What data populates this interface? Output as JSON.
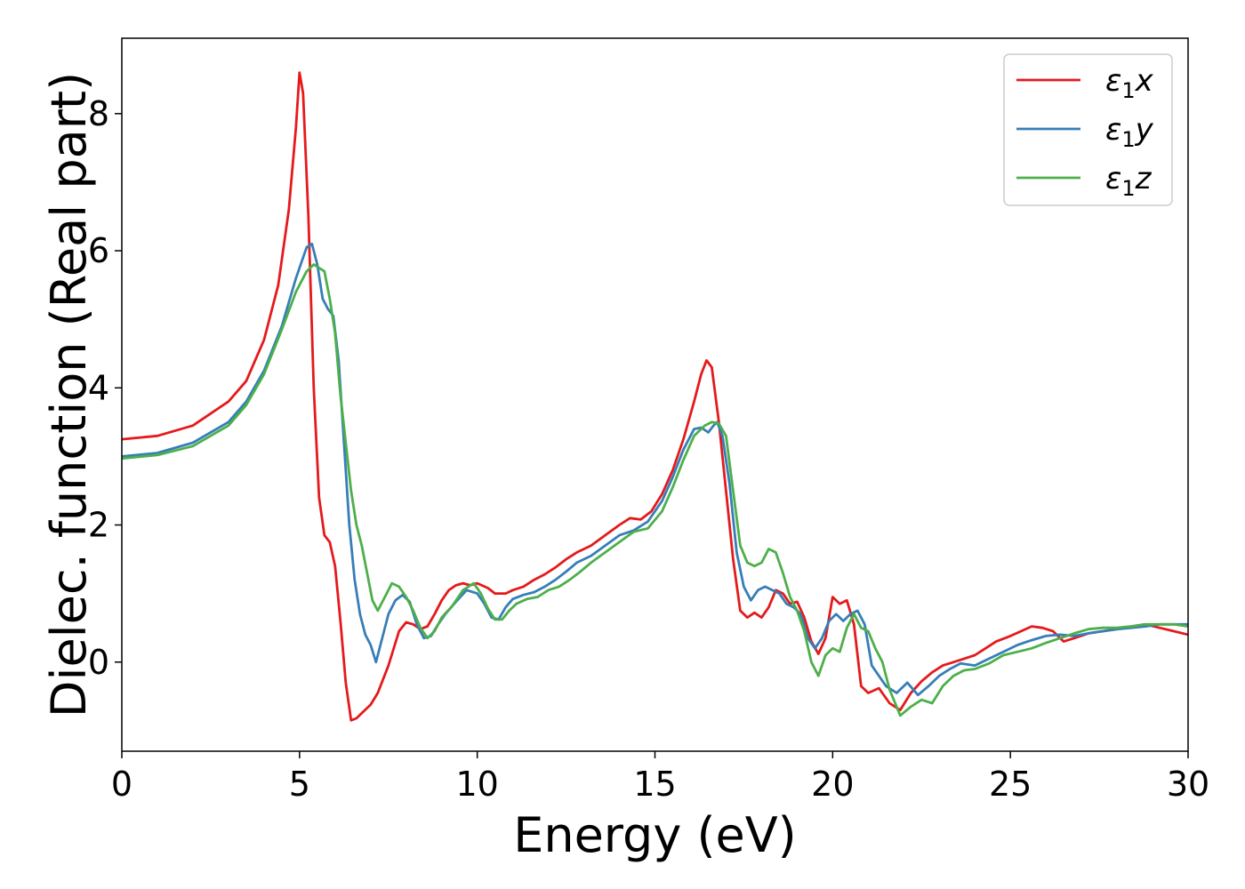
{
  "chart_data": {
    "type": "line",
    "title": "",
    "xlabel": "Energy (eV)",
    "ylabel": "Dielec. function (Real part)",
    "xlim": [
      0,
      30
    ],
    "ylim": [
      -1.3,
      9.1
    ],
    "xticks": [
      0,
      5,
      10,
      15,
      20,
      25,
      30
    ],
    "yticks": [
      0,
      2,
      4,
      6,
      8
    ],
    "grid": false,
    "legend_position": "top-right",
    "series": [
      {
        "name": "ε1x",
        "label_base": "ε",
        "label_sub": "1",
        "label_suffix": "x",
        "color": "#e41a1c",
        "points": [
          [
            0,
            3.25
          ],
          [
            1,
            3.3
          ],
          [
            2,
            3.45
          ],
          [
            3,
            3.8
          ],
          [
            3.5,
            4.1
          ],
          [
            4,
            4.7
          ],
          [
            4.4,
            5.5
          ],
          [
            4.7,
            6.6
          ],
          [
            4.9,
            7.8
          ],
          [
            5.0,
            8.6
          ],
          [
            5.1,
            8.3
          ],
          [
            5.25,
            6.5
          ],
          [
            5.4,
            4.0
          ],
          [
            5.55,
            2.4
          ],
          [
            5.7,
            1.85
          ],
          [
            5.85,
            1.75
          ],
          [
            6.0,
            1.4
          ],
          [
            6.15,
            0.6
          ],
          [
            6.3,
            -0.3
          ],
          [
            6.45,
            -0.85
          ],
          [
            6.6,
            -0.82
          ],
          [
            6.8,
            -0.72
          ],
          [
            7.0,
            -0.62
          ],
          [
            7.2,
            -0.45
          ],
          [
            7.5,
            -0.05
          ],
          [
            7.8,
            0.45
          ],
          [
            8.0,
            0.58
          ],
          [
            8.2,
            0.55
          ],
          [
            8.4,
            0.48
          ],
          [
            8.6,
            0.52
          ],
          [
            8.8,
            0.7
          ],
          [
            9.0,
            0.9
          ],
          [
            9.2,
            1.05
          ],
          [
            9.4,
            1.12
          ],
          [
            9.6,
            1.15
          ],
          [
            9.8,
            1.12
          ],
          [
            10.0,
            1.15
          ],
          [
            10.3,
            1.08
          ],
          [
            10.5,
            1.0
          ],
          [
            10.8,
            1.0
          ],
          [
            11.0,
            1.05
          ],
          [
            11.3,
            1.1
          ],
          [
            11.6,
            1.2
          ],
          [
            11.9,
            1.28
          ],
          [
            12.2,
            1.38
          ],
          [
            12.5,
            1.5
          ],
          [
            12.8,
            1.6
          ],
          [
            13.2,
            1.7
          ],
          [
            13.6,
            1.85
          ],
          [
            14.0,
            2.0
          ],
          [
            14.3,
            2.1
          ],
          [
            14.6,
            2.08
          ],
          [
            14.9,
            2.2
          ],
          [
            15.2,
            2.45
          ],
          [
            15.5,
            2.8
          ],
          [
            15.8,
            3.25
          ],
          [
            16.1,
            3.8
          ],
          [
            16.3,
            4.2
          ],
          [
            16.45,
            4.4
          ],
          [
            16.6,
            4.3
          ],
          [
            16.8,
            3.5
          ],
          [
            17.0,
            2.5
          ],
          [
            17.2,
            1.5
          ],
          [
            17.4,
            0.75
          ],
          [
            17.6,
            0.65
          ],
          [
            17.8,
            0.72
          ],
          [
            18.0,
            0.65
          ],
          [
            18.2,
            0.8
          ],
          [
            18.4,
            1.05
          ],
          [
            18.6,
            1.0
          ],
          [
            18.8,
            0.85
          ],
          [
            19.0,
            0.88
          ],
          [
            19.2,
            0.65
          ],
          [
            19.4,
            0.3
          ],
          [
            19.6,
            0.12
          ],
          [
            19.8,
            0.35
          ],
          [
            20.0,
            0.95
          ],
          [
            20.2,
            0.85
          ],
          [
            20.4,
            0.9
          ],
          [
            20.6,
            0.55
          ],
          [
            20.8,
            -0.35
          ],
          [
            21.0,
            -0.45
          ],
          [
            21.3,
            -0.38
          ],
          [
            21.6,
            -0.6
          ],
          [
            21.9,
            -0.7
          ],
          [
            22.2,
            -0.45
          ],
          [
            22.5,
            -0.28
          ],
          [
            22.8,
            -0.15
          ],
          [
            23.1,
            -0.05
          ],
          [
            23.4,
            0.0
          ],
          [
            23.7,
            0.05
          ],
          [
            24.0,
            0.1
          ],
          [
            24.3,
            0.2
          ],
          [
            24.6,
            0.3
          ],
          [
            25.0,
            0.38
          ],
          [
            25.3,
            0.45
          ],
          [
            25.6,
            0.52
          ],
          [
            25.9,
            0.5
          ],
          [
            26.2,
            0.45
          ],
          [
            26.5,
            0.3
          ],
          [
            26.8,
            0.35
          ],
          [
            27.2,
            0.42
          ],
          [
            27.6,
            0.45
          ],
          [
            28.0,
            0.48
          ],
          [
            28.4,
            0.52
          ],
          [
            28.8,
            0.55
          ],
          [
            29.2,
            0.5
          ],
          [
            29.6,
            0.45
          ],
          [
            30,
            0.4
          ]
        ]
      },
      {
        "name": "ε1y",
        "label_base": "ε",
        "label_sub": "1",
        "label_suffix": "y",
        "color": "#377eb8",
        "points": [
          [
            0,
            3.0
          ],
          [
            1,
            3.05
          ],
          [
            2,
            3.2
          ],
          [
            3,
            3.5
          ],
          [
            3.5,
            3.8
          ],
          [
            4,
            4.25
          ],
          [
            4.5,
            4.9
          ],
          [
            4.9,
            5.6
          ],
          [
            5.2,
            6.05
          ],
          [
            5.35,
            6.1
          ],
          [
            5.5,
            5.8
          ],
          [
            5.65,
            5.3
          ],
          [
            5.8,
            5.15
          ],
          [
            5.95,
            5.05
          ],
          [
            6.1,
            4.4
          ],
          [
            6.25,
            3.2
          ],
          [
            6.4,
            2.0
          ],
          [
            6.55,
            1.2
          ],
          [
            6.7,
            0.7
          ],
          [
            6.85,
            0.4
          ],
          [
            7.0,
            0.25
          ],
          [
            7.15,
            0.0
          ],
          [
            7.3,
            0.3
          ],
          [
            7.5,
            0.7
          ],
          [
            7.7,
            0.9
          ],
          [
            7.9,
            0.98
          ],
          [
            8.1,
            0.88
          ],
          [
            8.3,
            0.55
          ],
          [
            8.5,
            0.35
          ],
          [
            8.7,
            0.38
          ],
          [
            8.9,
            0.55
          ],
          [
            9.1,
            0.7
          ],
          [
            9.4,
            0.88
          ],
          [
            9.7,
            1.05
          ],
          [
            10.0,
            1.0
          ],
          [
            10.2,
            0.85
          ],
          [
            10.4,
            0.65
          ],
          [
            10.6,
            0.62
          ],
          [
            10.8,
            0.8
          ],
          [
            11.0,
            0.92
          ],
          [
            11.3,
            0.98
          ],
          [
            11.6,
            1.02
          ],
          [
            11.9,
            1.1
          ],
          [
            12.2,
            1.2
          ],
          [
            12.5,
            1.32
          ],
          [
            12.8,
            1.45
          ],
          [
            13.2,
            1.55
          ],
          [
            13.6,
            1.7
          ],
          [
            14.0,
            1.85
          ],
          [
            14.4,
            1.92
          ],
          [
            14.8,
            2.05
          ],
          [
            15.2,
            2.35
          ],
          [
            15.5,
            2.7
          ],
          [
            15.8,
            3.1
          ],
          [
            16.1,
            3.4
          ],
          [
            16.3,
            3.42
          ],
          [
            16.5,
            3.35
          ],
          [
            16.65,
            3.45
          ],
          [
            16.75,
            3.5
          ],
          [
            16.9,
            3.3
          ],
          [
            17.1,
            2.6
          ],
          [
            17.3,
            1.6
          ],
          [
            17.5,
            1.1
          ],
          [
            17.7,
            0.9
          ],
          [
            17.9,
            1.05
          ],
          [
            18.1,
            1.1
          ],
          [
            18.3,
            1.05
          ],
          [
            18.5,
            1.0
          ],
          [
            18.7,
            0.85
          ],
          [
            18.9,
            0.8
          ],
          [
            19.1,
            0.7
          ],
          [
            19.3,
            0.35
          ],
          [
            19.5,
            0.2
          ],
          [
            19.7,
            0.35
          ],
          [
            19.9,
            0.6
          ],
          [
            20.1,
            0.7
          ],
          [
            20.3,
            0.6
          ],
          [
            20.5,
            0.7
          ],
          [
            20.7,
            0.75
          ],
          [
            20.9,
            0.55
          ],
          [
            21.1,
            -0.05
          ],
          [
            21.3,
            -0.2
          ],
          [
            21.5,
            -0.35
          ],
          [
            21.8,
            -0.45
          ],
          [
            22.1,
            -0.3
          ],
          [
            22.4,
            -0.48
          ],
          [
            22.7,
            -0.35
          ],
          [
            23.0,
            -0.2
          ],
          [
            23.3,
            -0.1
          ],
          [
            23.6,
            -0.02
          ],
          [
            24.0,
            -0.05
          ],
          [
            24.4,
            0.05
          ],
          [
            24.8,
            0.15
          ],
          [
            25.2,
            0.25
          ],
          [
            25.6,
            0.32
          ],
          [
            26.0,
            0.38
          ],
          [
            26.4,
            0.4
          ],
          [
            26.8,
            0.38
          ],
          [
            27.2,
            0.42
          ],
          [
            27.6,
            0.45
          ],
          [
            28.0,
            0.48
          ],
          [
            28.4,
            0.5
          ],
          [
            28.8,
            0.52
          ],
          [
            29.2,
            0.55
          ],
          [
            29.6,
            0.55
          ],
          [
            30,
            0.55
          ]
        ]
      },
      {
        "name": "ε1z",
        "label_base": "ε",
        "label_sub": "1",
        "label_suffix": "z",
        "color": "#4daf4a",
        "points": [
          [
            0,
            2.97
          ],
          [
            1,
            3.02
          ],
          [
            2,
            3.15
          ],
          [
            3,
            3.45
          ],
          [
            3.5,
            3.75
          ],
          [
            4,
            4.2
          ],
          [
            4.5,
            4.85
          ],
          [
            4.9,
            5.4
          ],
          [
            5.2,
            5.7
          ],
          [
            5.4,
            5.8
          ],
          [
            5.55,
            5.75
          ],
          [
            5.7,
            5.7
          ],
          [
            5.85,
            5.3
          ],
          [
            6.0,
            4.8
          ],
          [
            6.15,
            3.9
          ],
          [
            6.3,
            3.2
          ],
          [
            6.45,
            2.5
          ],
          [
            6.6,
            2.0
          ],
          [
            6.75,
            1.7
          ],
          [
            6.9,
            1.3
          ],
          [
            7.05,
            0.9
          ],
          [
            7.2,
            0.75
          ],
          [
            7.4,
            0.95
          ],
          [
            7.6,
            1.15
          ],
          [
            7.8,
            1.1
          ],
          [
            8.0,
            0.95
          ],
          [
            8.2,
            0.75
          ],
          [
            8.4,
            0.5
          ],
          [
            8.6,
            0.35
          ],
          [
            8.8,
            0.45
          ],
          [
            9.0,
            0.65
          ],
          [
            9.3,
            0.82
          ],
          [
            9.6,
            1.05
          ],
          [
            9.9,
            1.15
          ],
          [
            10.1,
            1.0
          ],
          [
            10.3,
            0.78
          ],
          [
            10.5,
            0.62
          ],
          [
            10.7,
            0.62
          ],
          [
            10.9,
            0.75
          ],
          [
            11.1,
            0.85
          ],
          [
            11.4,
            0.92
          ],
          [
            11.7,
            0.95
          ],
          [
            12.0,
            1.05
          ],
          [
            12.3,
            1.1
          ],
          [
            12.6,
            1.2
          ],
          [
            12.9,
            1.32
          ],
          [
            13.2,
            1.45
          ],
          [
            13.6,
            1.6
          ],
          [
            14.0,
            1.75
          ],
          [
            14.4,
            1.9
          ],
          [
            14.8,
            1.95
          ],
          [
            15.2,
            2.2
          ],
          [
            15.5,
            2.55
          ],
          [
            15.8,
            2.95
          ],
          [
            16.1,
            3.3
          ],
          [
            16.4,
            3.45
          ],
          [
            16.6,
            3.5
          ],
          [
            16.8,
            3.48
          ],
          [
            17.0,
            3.3
          ],
          [
            17.2,
            2.5
          ],
          [
            17.4,
            1.7
          ],
          [
            17.6,
            1.45
          ],
          [
            17.8,
            1.4
          ],
          [
            18.0,
            1.45
          ],
          [
            18.2,
            1.65
          ],
          [
            18.4,
            1.6
          ],
          [
            18.6,
            1.3
          ],
          [
            18.8,
            0.95
          ],
          [
            19.0,
            0.75
          ],
          [
            19.2,
            0.45
          ],
          [
            19.4,
            0.0
          ],
          [
            19.6,
            -0.2
          ],
          [
            19.8,
            0.1
          ],
          [
            20.0,
            0.2
          ],
          [
            20.2,
            0.15
          ],
          [
            20.4,
            0.5
          ],
          [
            20.6,
            0.7
          ],
          [
            20.8,
            0.5
          ],
          [
            21.0,
            0.45
          ],
          [
            21.2,
            0.2
          ],
          [
            21.4,
            0.0
          ],
          [
            21.6,
            -0.4
          ],
          [
            21.9,
            -0.78
          ],
          [
            22.2,
            -0.65
          ],
          [
            22.5,
            -0.55
          ],
          [
            22.8,
            -0.6
          ],
          [
            23.1,
            -0.35
          ],
          [
            23.4,
            -0.2
          ],
          [
            23.7,
            -0.12
          ],
          [
            24.0,
            -0.1
          ],
          [
            24.4,
            -0.02
          ],
          [
            24.8,
            0.1
          ],
          [
            25.2,
            0.15
          ],
          [
            25.6,
            0.2
          ],
          [
            26.0,
            0.28
          ],
          [
            26.4,
            0.35
          ],
          [
            26.8,
            0.42
          ],
          [
            27.2,
            0.48
          ],
          [
            27.6,
            0.5
          ],
          [
            28.0,
            0.5
          ],
          [
            28.4,
            0.52
          ],
          [
            28.8,
            0.55
          ],
          [
            29.2,
            0.55
          ],
          [
            29.6,
            0.55
          ],
          [
            30,
            0.52
          ]
        ]
      }
    ]
  }
}
